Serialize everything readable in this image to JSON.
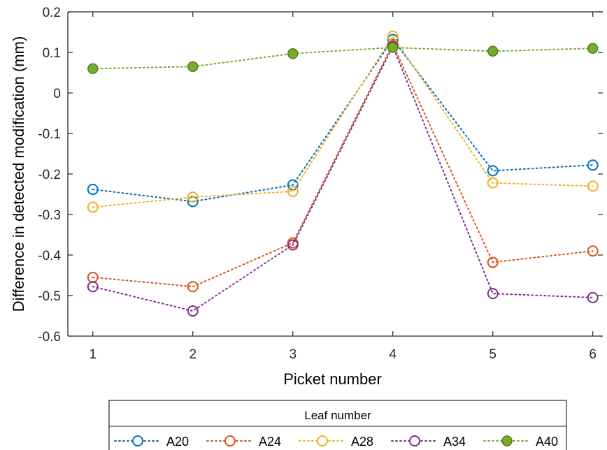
{
  "chart_data": {
    "type": "line",
    "title": "",
    "xlabel": "Picket number",
    "ylabel": "Difference in detected modification (mm)",
    "x": [
      1,
      2,
      3,
      4,
      5,
      6
    ],
    "xlim": [
      0.75,
      6.1
    ],
    "ylim": [
      -0.6,
      0.2
    ],
    "xticks": [
      "1",
      "2",
      "3",
      "4",
      "5",
      "6"
    ],
    "yticks": [
      "0.2",
      "0.1",
      "0",
      "-0.1",
      "-0.2",
      "-0.3",
      "-0.4",
      "-0.5",
      "-0.6"
    ],
    "ytick_values": [
      0.2,
      0.1,
      0,
      -0.1,
      -0.2,
      -0.3,
      -0.4,
      -0.5,
      -0.6
    ],
    "grid": false,
    "legend": {
      "title": "Leaf number",
      "placement": "bottom-outside",
      "orientation": "horizontal"
    },
    "series": [
      {
        "name": "A20",
        "color": "#0072BD",
        "marker": "open-circle",
        "line": "dotted",
        "values": [
          -0.238,
          -0.268,
          -0.227,
          0.132,
          -0.192,
          -0.178
        ]
      },
      {
        "name": "A24",
        "color": "#D95319",
        "marker": "open-circle",
        "line": "dotted",
        "values": [
          -0.455,
          -0.478,
          -0.37,
          0.12,
          -0.418,
          -0.39
        ]
      },
      {
        "name": "A28",
        "color": "#EDB120",
        "marker": "open-circle",
        "line": "dotted",
        "values": [
          -0.282,
          -0.257,
          -0.243,
          0.14,
          -0.222,
          -0.23
        ]
      },
      {
        "name": "A34",
        "color": "#7E2F8E",
        "marker": "open-circle",
        "line": "dotted",
        "values": [
          -0.478,
          -0.538,
          -0.375,
          0.115,
          -0.495,
          -0.505
        ]
      },
      {
        "name": "A40",
        "color": "#77AC30",
        "marker": "filled-circle",
        "line": "dotted",
        "values": [
          0.06,
          0.065,
          0.097,
          0.112,
          0.103,
          0.11
        ]
      }
    ]
  }
}
